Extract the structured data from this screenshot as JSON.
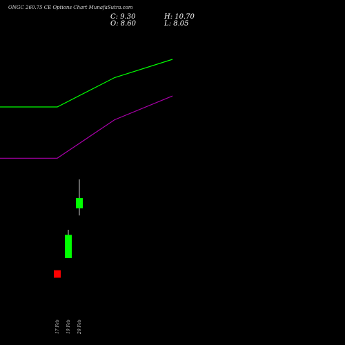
{
  "header": {
    "title": "ONGC 260.75 CE Options  Chart MunafaSutra.com",
    "close_label": "C: 9.30",
    "high_label": "H: 10.70",
    "open_label": "O: 8.60",
    "low_label": "L: 8.05"
  },
  "chart_data": {
    "type": "candlestick",
    "title": "ONGC 260.75 CE Options  Chart MunafaSutra.com",
    "xlabel": "",
    "ylabel": "",
    "categories": [
      "17 Feb",
      "19 Feb",
      "20 Feb"
    ],
    "candles": [
      {
        "date": "17 Feb",
        "open": 4.0,
        "high": 4.0,
        "low": 3.5,
        "close": 3.5
      },
      {
        "date": "19 Feb",
        "open": 4.95,
        "high": 7.0,
        "low": 4.95,
        "close": 6.6
      },
      {
        "date": "20 Feb",
        "open": 8.6,
        "high": 10.7,
        "low": 8.05,
        "close": 9.3
      }
    ],
    "lines": [
      {
        "color": "#00ff00",
        "x": [
          "",
          "17 Feb",
          "19 Feb",
          "20 Feb"
        ],
        "values": [
          25.0,
          25.0,
          26.6,
          27.6
        ]
      },
      {
        "color": "#aa00aa",
        "x": [
          "",
          "17 Feb",
          "19 Feb",
          "20 Feb"
        ],
        "values": [
          22.2,
          22.2,
          24.3,
          25.6
        ]
      }
    ],
    "colors": {
      "up": "#00ff00",
      "down": "#ff0000",
      "background": "#000000"
    }
  }
}
